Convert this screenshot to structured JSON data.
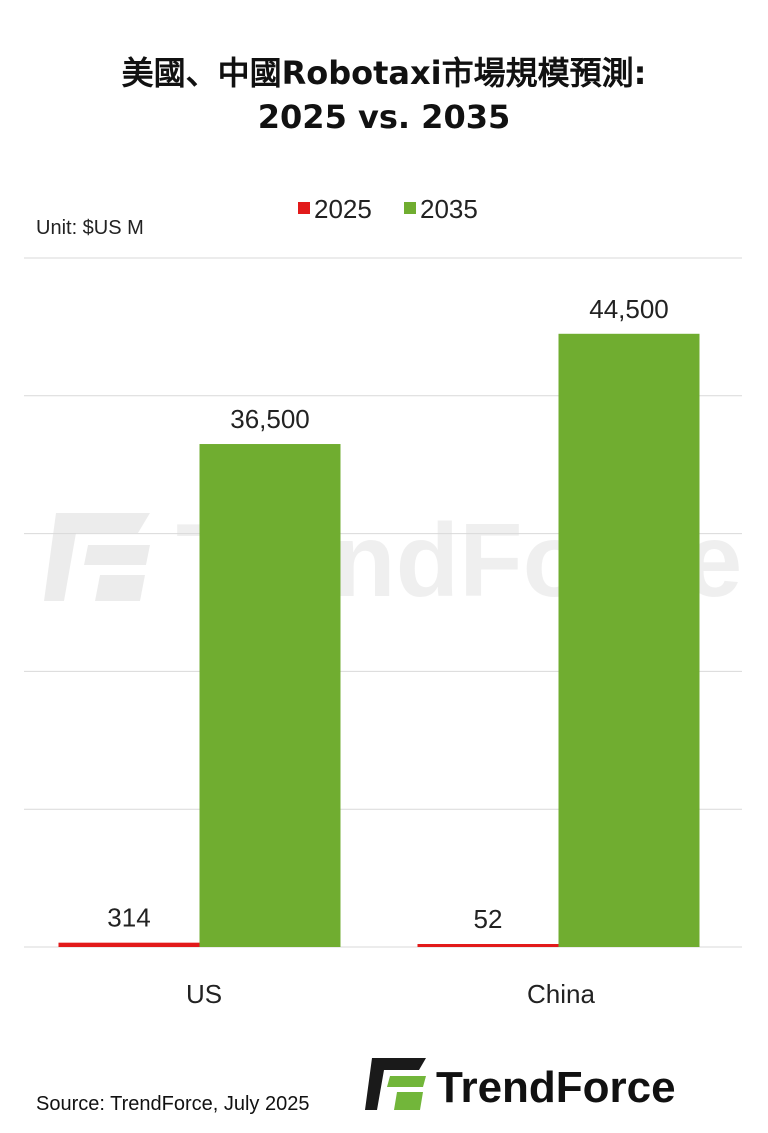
{
  "chart_data": {
    "type": "bar",
    "title_line1": "美國、中國Robotaxi市場規模預測:",
    "title_line2": "2025 vs. 2035",
    "unit": "Unit: $US M",
    "categories": [
      "US",
      "China"
    ],
    "series": [
      {
        "name": "2025",
        "values": [
          314,
          52
        ],
        "color": "#e21a1a",
        "labels": [
          "314",
          "52"
        ]
      },
      {
        "name": "2035",
        "values": [
          36500,
          44500
        ],
        "color": "#70ad30",
        "labels": [
          "36,500",
          "44,500"
        ]
      }
    ],
    "ylim": [
      0,
      50000
    ],
    "grid": true,
    "legend_position": "top"
  },
  "source": "Source: TrendForce, July 2025",
  "brand": "TrendForce",
  "watermark": "TrendForce"
}
